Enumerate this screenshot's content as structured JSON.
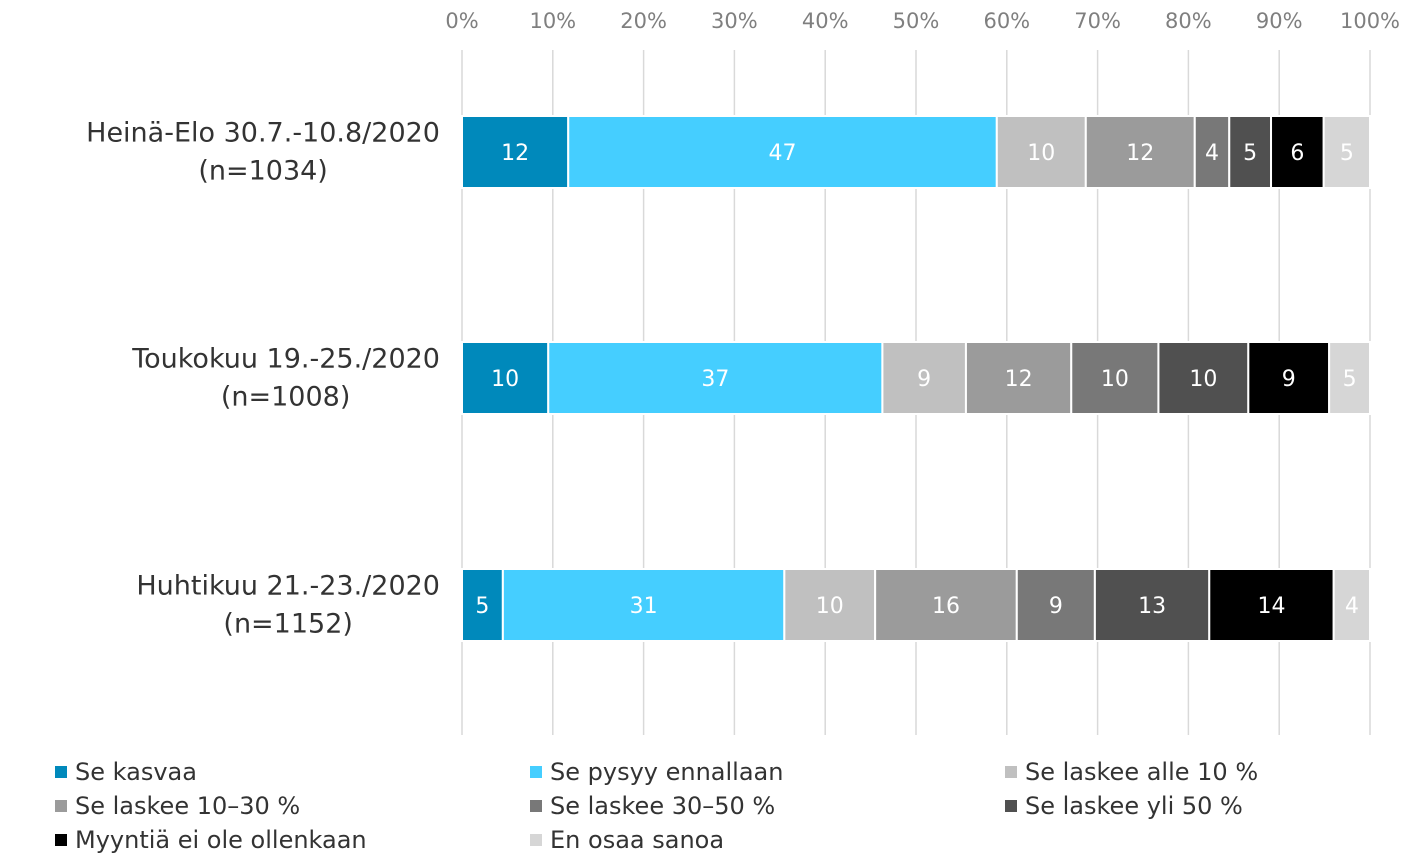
{
  "chart_data": {
    "type": "stacked-bar-horizontal",
    "categories": [
      [
        "Heinä-Elo 30.7.-10.8/2020",
        "(n=1034)"
      ],
      [
        "Toukokuu 19.-25./2020",
        "(n=1008)"
      ],
      [
        "Huhtikuu 21.-23./2020",
        "(n=1152)"
      ]
    ],
    "series": [
      {
        "name": "Se kasvaa",
        "color": "#0089bb",
        "values": [
          11.7,
          9.5,
          4.5
        ],
        "value_labels": [
          "12",
          "10",
          "5"
        ]
      },
      {
        "name": "Se pysyy ennallaan",
        "color": "#45ceff",
        "values": [
          47.2,
          36.8,
          31.0
        ],
        "value_labels": [
          "47",
          "37",
          "31"
        ]
      },
      {
        "name": "Se laskee alle 10 %",
        "color": "#c0c0c0",
        "values": [
          9.8,
          9.2,
          10.0
        ],
        "value_labels": [
          "10",
          "9",
          "10"
        ]
      },
      {
        "name": "Se laskee 10–30 %",
        "color": "#9b9b9b",
        "values": [
          12.0,
          11.6,
          15.6
        ],
        "value_labels": [
          "12",
          "12",
          "16"
        ]
      },
      {
        "name": "Se laskee 30–50 %",
        "color": "#787878",
        "values": [
          3.8,
          9.6,
          8.6
        ],
        "value_labels": [
          "4",
          "10",
          "9"
        ]
      },
      {
        "name": "Se laskee yli 50 %",
        "color": "#505050",
        "values": [
          4.6,
          9.9,
          12.6
        ],
        "value_labels": [
          "5",
          "10",
          "13"
        ]
      },
      {
        "name": "Myyntiä ei ole ollenkaan",
        "color": "#000000",
        "values": [
          5.8,
          8.9,
          13.7
        ],
        "value_labels": [
          "6",
          "9",
          "14"
        ]
      },
      {
        "name": "En osaa sanoa",
        "color": "#d6d6d6",
        "values": [
          5.1,
          4.5,
          4.0
        ],
        "value_labels": [
          "5",
          "5",
          "4"
        ]
      }
    ],
    "xlim": [
      0,
      100
    ],
    "xticks": [
      {
        "value": 0,
        "label": "0%"
      },
      {
        "value": 10,
        "label": "10%"
      },
      {
        "value": 20,
        "label": "20%"
      },
      {
        "value": 30,
        "label": "30%"
      },
      {
        "value": 40,
        "label": "40%"
      },
      {
        "value": 50,
        "label": "50%"
      },
      {
        "value": 60,
        "label": "60%"
      },
      {
        "value": 70,
        "label": "70%"
      },
      {
        "value": 80,
        "label": "80%"
      },
      {
        "value": 90,
        "label": "90%"
      },
      {
        "value": 100,
        "label": "100%"
      }
    ],
    "grid": true,
    "legend": "bottom"
  }
}
